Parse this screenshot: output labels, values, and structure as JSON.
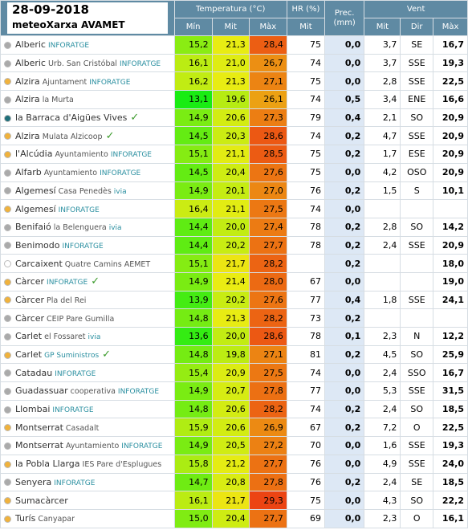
{
  "header": {
    "date": "28-09-2018",
    "network": "meteoXarxa AVAMET",
    "groups": [
      "Temperatura (°C)",
      "HR (%)",
      "Prec. (mm)",
      "Vent"
    ],
    "columns": [
      "Mín",
      "Mit",
      "Màx",
      "Mit",
      "Mit",
      "Dir",
      "Màx"
    ]
  },
  "rows": [
    {
      "dot": "#aaaaaa",
      "name": "Alberic",
      "sub": null,
      "sponsor": "INFORATGE",
      "check": false,
      "cells": [
        "15,2",
        "21,3",
        "28,4",
        "75",
        "0,0",
        "3,7",
        "SE",
        "16,7"
      ]
    },
    {
      "dot": "#aaaaaa",
      "name": "Alberic",
      "sub": "Urb. San Cristóbal",
      "sponsor": "INFORATGE",
      "check": false,
      "cells": [
        "16,1",
        "21,0",
        "26,7",
        "74",
        "0,0",
        "3,7",
        "SSE",
        "19,3"
      ]
    },
    {
      "dot": "#f0b23c",
      "name": "Alzira",
      "sub": "Ajuntament",
      "sponsor": "INFORATGE",
      "check": false,
      "cells": [
        "16,2",
        "21,3",
        "27,1",
        "75",
        "0,0",
        "2,8",
        "SSE",
        "22,5"
      ]
    },
    {
      "dot": "#aaaaaa",
      "name": "Alzira",
      "sub": "la Murta",
      "sponsor": null,
      "check": false,
      "cells": [
        "13,1",
        "19,6",
        "26,1",
        "74",
        "0,5",
        "3,4",
        "ENE",
        "16,6"
      ]
    },
    {
      "dot": "#1f6f7a",
      "name": "la Barraca d'Aigües Vives",
      "sub": null,
      "sponsor": null,
      "check": true,
      "cells": [
        "14,9",
        "20,6",
        "27,3",
        "79",
        "0,4",
        "2,1",
        "SO",
        "20,9"
      ]
    },
    {
      "dot": "#f0b23c",
      "name": "Alzira",
      "sub": "Mulata Alzicoop",
      "sponsor": null,
      "check": true,
      "cells": [
        "14,5",
        "20,3",
        "28,6",
        "74",
        "0,2",
        "4,7",
        "SSE",
        "20,9"
      ]
    },
    {
      "dot": "#f0b23c",
      "name": "l'Alcúdia",
      "sub": "Ayuntamiento",
      "sponsor": "INFORATGE",
      "check": false,
      "cells": [
        "15,1",
        "21,1",
        "28,5",
        "75",
        "0,2",
        "1,7",
        "ESE",
        "20,9"
      ]
    },
    {
      "dot": "#aaaaaa",
      "name": "Alfarb",
      "sub": "Ayuntamiento",
      "sponsor": "INFORATGE",
      "check": false,
      "cells": [
        "14,5",
        "20,4",
        "27,6",
        "75",
        "0,0",
        "4,2",
        "OSO",
        "20,9"
      ]
    },
    {
      "dot": "#aaaaaa",
      "name": "Algemesí",
      "sub": "Casa Penedès",
      "sponsor": "ivia",
      "check": false,
      "cells": [
        "14,9",
        "20,1",
        "27,0",
        "76",
        "0,2",
        "1,5",
        "S",
        "10,1"
      ]
    },
    {
      "dot": "#f0b23c",
      "name": "Algemesí",
      "sub": null,
      "sponsor": "INFORATGE",
      "check": false,
      "cells": [
        "16,4",
        "21,1",
        "27,5",
        "74",
        "0,0",
        null,
        null,
        null
      ]
    },
    {
      "dot": "#aaaaaa",
      "name": "Benifaió",
      "sub": "la Belenguera",
      "sponsor": "ivia",
      "check": false,
      "cells": [
        "14,4",
        "20,0",
        "27,4",
        "78",
        "0,2",
        "2,8",
        "SO",
        "14,2"
      ]
    },
    {
      "dot": "#aaaaaa",
      "name": "Benimodo",
      "sub": null,
      "sponsor": "INFORATGE",
      "check": false,
      "cells": [
        "14,4",
        "20,2",
        "27,7",
        "78",
        "0,2",
        "2,4",
        "SSE",
        "20,9"
      ]
    },
    {
      "dot": "#ffffff",
      "name": "Carcaixent",
      "sub": "Quatre Camins AEMET",
      "sponsor": null,
      "check": false,
      "cells": [
        "15,1",
        "21,7",
        "28,2",
        null,
        "0,2",
        null,
        null,
        "18,0"
      ]
    },
    {
      "dot": "#f0b23c",
      "name": "Càrcer",
      "sub": null,
      "sponsor": "INFORATGE",
      "check": true,
      "cells": [
        "14,9",
        "21,4",
        "28,0",
        "67",
        "0,0",
        null,
        null,
        "19,0"
      ]
    },
    {
      "dot": "#f0b23c",
      "name": "Càrcer",
      "sub": "Pla del Rei",
      "sponsor": null,
      "check": false,
      "cells": [
        "13,9",
        "20,2",
        "27,6",
        "77",
        "0,4",
        "1,8",
        "SSE",
        "24,1"
      ]
    },
    {
      "dot": "#aaaaaa",
      "name": "Càrcer",
      "sub": "CEIP Pare Gumilla",
      "sponsor": null,
      "check": false,
      "cells": [
        "14,8",
        "21,3",
        "28,2",
        "73",
        "0,2",
        null,
        null,
        null
      ]
    },
    {
      "dot": "#aaaaaa",
      "name": "Carlet",
      "sub": "el Fossaret",
      "sponsor": "ivia",
      "check": false,
      "cells": [
        "13,6",
        "20,0",
        "28,6",
        "78",
        "0,1",
        "2,3",
        "N",
        "12,2"
      ]
    },
    {
      "dot": "#f0b23c",
      "name": "Carlet",
      "sub": null,
      "sponsor": "GP Suministros",
      "check": true,
      "cells": [
        "14,8",
        "19,8",
        "27,1",
        "81",
        "0,2",
        "4,5",
        "SO",
        "25,9"
      ]
    },
    {
      "dot": "#aaaaaa",
      "name": "Catadau",
      "sub": null,
      "sponsor": "INFORATGE",
      "check": false,
      "cells": [
        "15,4",
        "20,9",
        "27,5",
        "74",
        "0,0",
        "2,4",
        "SSO",
        "16,7"
      ]
    },
    {
      "dot": "#aaaaaa",
      "name": "Guadassuar",
      "sub": "cooperativa",
      "sponsor": "INFORATGE",
      "check": false,
      "cells": [
        "14,9",
        "20,7",
        "27,8",
        "77",
        "0,0",
        "5,3",
        "SSE",
        "31,5"
      ]
    },
    {
      "dot": "#aaaaaa",
      "name": "Llombai",
      "sub": null,
      "sponsor": "INFORATGE",
      "check": false,
      "cells": [
        "14,8",
        "20,6",
        "28,2",
        "74",
        "0,2",
        "2,4",
        "SO",
        "18,5"
      ]
    },
    {
      "dot": "#f0b23c",
      "name": "Montserrat",
      "sub": "Casadalt",
      "sponsor": null,
      "check": false,
      "cells": [
        "15,9",
        "20,6",
        "26,9",
        "67",
        "0,2",
        "7,2",
        "O",
        "22,5"
      ]
    },
    {
      "dot": "#aaaaaa",
      "name": "Montserrat",
      "sub": "Ayuntamiento",
      "sponsor": "INFORATGE",
      "check": false,
      "cells": [
        "14,9",
        "20,5",
        "27,2",
        "70",
        "0,0",
        "1,6",
        "SSE",
        "19,3"
      ]
    },
    {
      "dot": "#f0b23c",
      "name": "la Pobla Llarga",
      "sub": "IES Pare d'Esplugues",
      "sponsor": null,
      "check": false,
      "cells": [
        "15,8",
        "21,2",
        "27,7",
        "76",
        "0,0",
        "4,9",
        "SSE",
        "24,0"
      ]
    },
    {
      "dot": "#aaaaaa",
      "name": "Senyera",
      "sub": null,
      "sponsor": "INFORATGE",
      "check": false,
      "cells": [
        "14,7",
        "20,8",
        "27,8",
        "76",
        "0,2",
        "2,4",
        "SE",
        "18,5"
      ]
    },
    {
      "dot": "#f0b23c",
      "name": "Sumacàrcer",
      "sub": null,
      "sponsor": null,
      "check": false,
      "cells": [
        "16,1",
        "21,7",
        "29,3",
        "75",
        "0,0",
        "4,3",
        "SO",
        "22,2"
      ]
    },
    {
      "dot": "#f0b23c",
      "name": "Turís",
      "sub": "Canyapar",
      "sponsor": null,
      "check": false,
      "cells": [
        "15,0",
        "20,4",
        "27,7",
        "69",
        "0,0",
        "2,3",
        "O",
        "16,1"
      ]
    }
  ]
}
